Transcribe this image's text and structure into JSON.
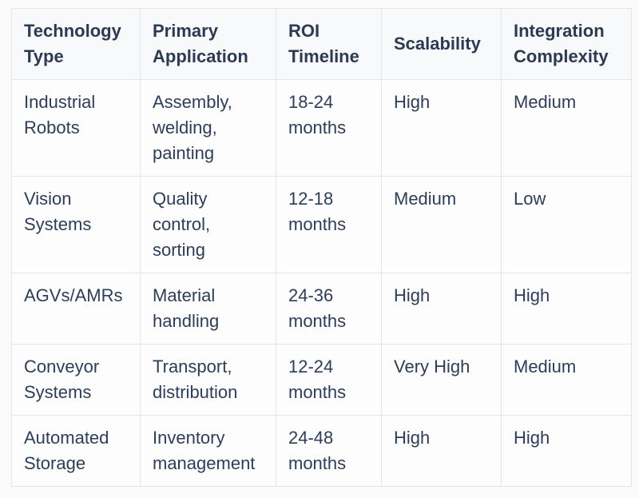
{
  "chart_data": {
    "type": "table",
    "columns": [
      "Technology Type",
      "Primary Application",
      "ROI Timeline",
      "Scalability",
      "Integration Complexity"
    ],
    "rows": [
      [
        "Industrial Robots",
        "Assembly, welding, painting",
        "18-24 months",
        "High",
        "Medium"
      ],
      [
        "Vision Systems",
        "Quality control, sorting",
        "12-18 months",
        "Medium",
        "Low"
      ],
      [
        "AGVs/AMRs",
        "Material handling",
        "24-36 months",
        "High",
        "High"
      ],
      [
        "Conveyor Systems",
        "Transport, distribution",
        "12-24 months",
        "Very High",
        "Medium"
      ],
      [
        "Automated Storage",
        "Inventory management",
        "24-48 months",
        "High",
        "High"
      ]
    ]
  },
  "colors": {
    "page_bg": "#fbfbfc",
    "header_bg": "#f8f9fa",
    "cell_bg": "#fdfdfe",
    "border": "#e3e5e9",
    "text": "#2f3d56"
  }
}
